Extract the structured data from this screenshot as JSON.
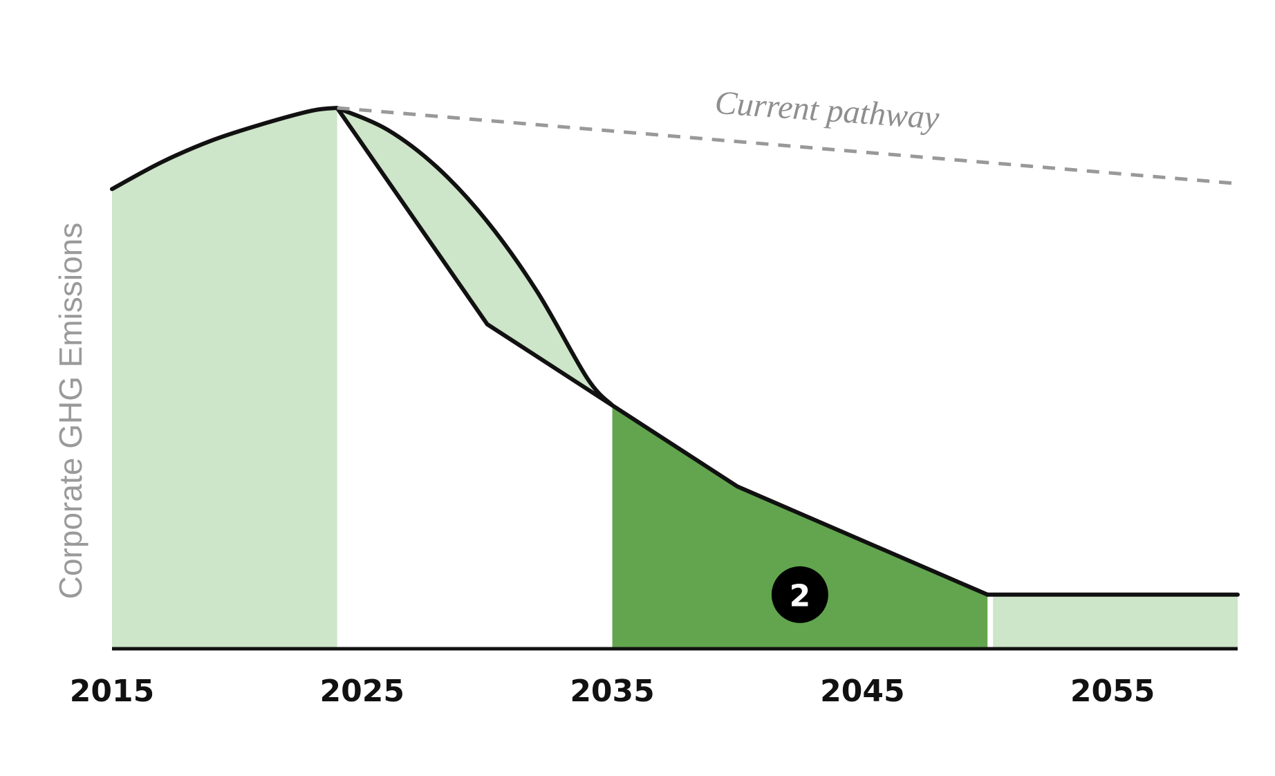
{
  "chart_data": {
    "type": "area",
    "ylabel": "Corporate GHG Emissions",
    "xlabel": "",
    "x_ticks": [
      "2015",
      "2025",
      "2035",
      "2045",
      "2055"
    ],
    "xlim": [
      2015,
      2060
    ],
    "ylim": [
      0,
      100
    ],
    "y_ticks_shown": false,
    "grid": false,
    "legend": "none",
    "annotation": "Current pathway",
    "marker_label": "2",
    "series": [
      {
        "id": "historical",
        "style": "solid-fill",
        "color": "#cde5c8",
        "x": [
          2015,
          2017,
          2019,
          2021,
          2023,
          2024
        ],
        "y": [
          85,
          90,
          94,
          97,
          99.5,
          100
        ]
      },
      {
        "id": "upper_curve",
        "style": "solid-line",
        "x": [
          2024,
          2026,
          2028,
          2030,
          2032,
          2034,
          2035
        ],
        "y": [
          100,
          96,
          89,
          79,
          66,
          50,
          45
        ]
      },
      {
        "id": "lower_path",
        "style": "solid-line",
        "x": [
          2024,
          2030,
          2035
        ],
        "y": [
          100,
          60,
          45
        ]
      },
      {
        "id": "reduction_pathway",
        "style": "solid-fill",
        "color": "#62a54e",
        "x": [
          2035,
          2040,
          2050
        ],
        "y": [
          45,
          30,
          10
        ]
      },
      {
        "id": "residual",
        "style": "solid-fill",
        "color": "#cde5c8",
        "x": [
          2050,
          2060
        ],
        "y": [
          10,
          10
        ]
      },
      {
        "id": "current_pathway",
        "style": "dashed-line",
        "color": "#999999",
        "x": [
          2024,
          2060
        ],
        "y": [
          100,
          86
        ]
      }
    ]
  }
}
